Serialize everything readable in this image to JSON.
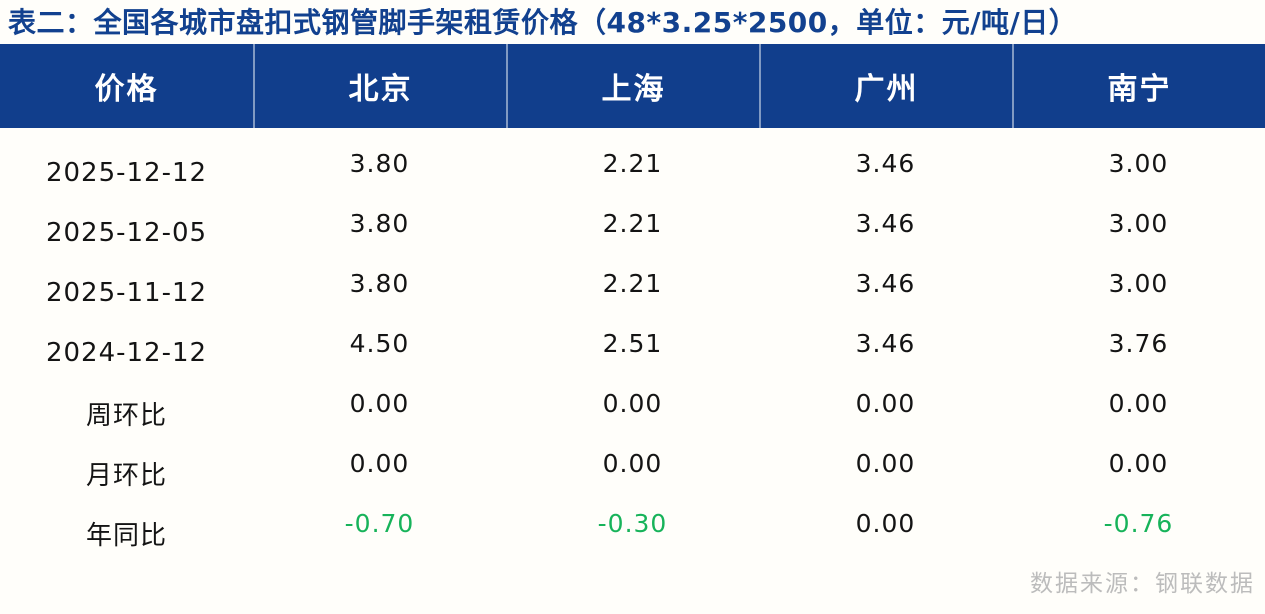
{
  "chart_data": {
    "type": "table",
    "title": "表二：全国各城市盘扣式钢管脚手架租赁价格（48*3.25*2500，单位：元/吨/日）",
    "units": "元/吨/日",
    "spec": "48*3.25*2500",
    "columns": [
      "价格",
      "北京",
      "上海",
      "广州",
      "南宁"
    ],
    "rows": [
      {
        "label": "2025-12-12",
        "values": [
          "3.80",
          "2.21",
          "3.46",
          "3.00"
        ]
      },
      {
        "label": "2025-12-05",
        "values": [
          "3.80",
          "2.21",
          "3.46",
          "3.00"
        ]
      },
      {
        "label": "2025-11-12",
        "values": [
          "3.80",
          "2.21",
          "3.46",
          "3.00"
        ]
      },
      {
        "label": "2024-12-12",
        "values": [
          "4.50",
          "2.51",
          "3.46",
          "3.76"
        ]
      },
      {
        "label": "周环比",
        "values": [
          "0.00",
          "0.00",
          "0.00",
          "0.00"
        ]
      },
      {
        "label": "月环比",
        "values": [
          "0.00",
          "0.00",
          "0.00",
          "0.00"
        ]
      },
      {
        "label": "年同比",
        "values": [
          "-0.70",
          "-0.30",
          "0.00",
          "-0.76"
        ]
      }
    ]
  },
  "footer": {
    "source_label": "数据来源：钢联数据"
  },
  "colors": {
    "header_bg": "#113e8c",
    "title_text": "#12418f",
    "negative_green": "#17b35a",
    "body_text": "#141414",
    "footer_text": "#bcbcbc"
  }
}
